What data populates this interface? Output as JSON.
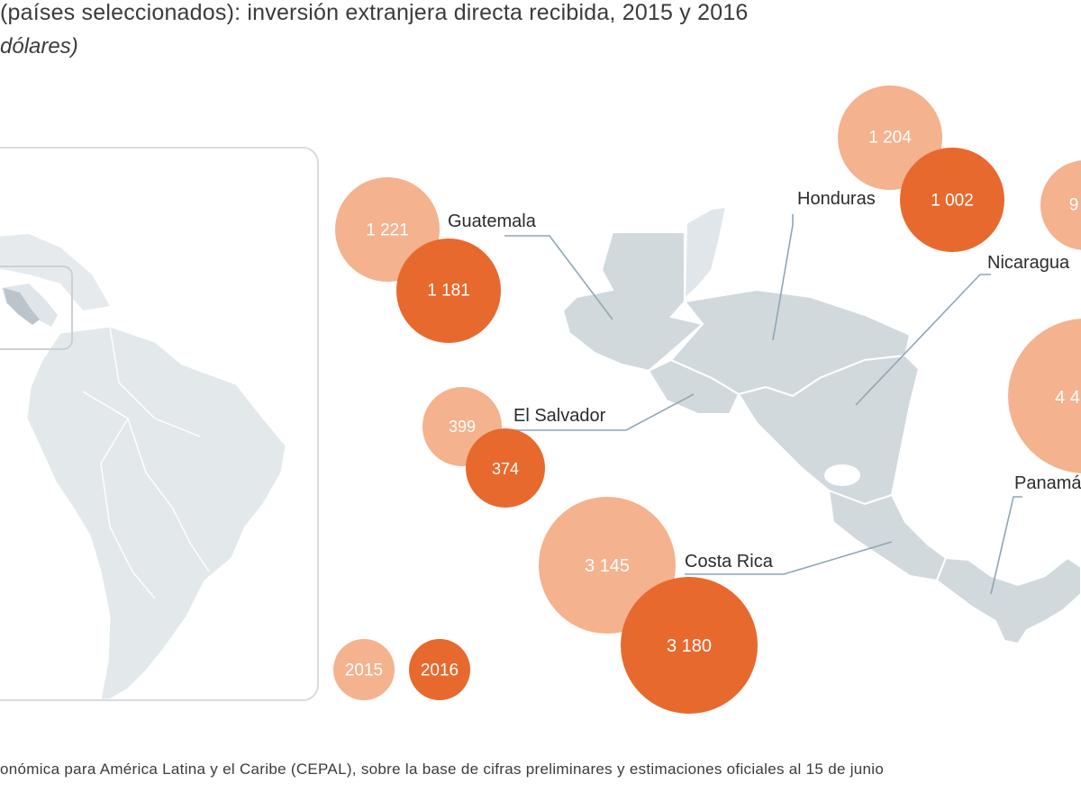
{
  "header": {
    "title": "(países seleccionados): inversión extranjera directa recibida, 2015 y 2016",
    "subtitle": "dólares)"
  },
  "footer": {
    "source": "onómica para América Latina y el Caribe (CEPAL), sobre la base de cifras preliminares y estimaciones oficiales al 15 de junio"
  },
  "colors": {
    "y2015": "#f4b28e",
    "y2016": "#e8692d",
    "land": "#d2d9dd",
    "land_inset": "#e3e8eb",
    "border_line": "#ffffff",
    "leader_line": "#8fa6b3"
  },
  "legend": {
    "y2015": "2015",
    "y2016": "2016"
  },
  "chart_data": {
    "type": "bubble-map",
    "unit": "millones de dólares",
    "series": [
      {
        "name": "2015",
        "color": "#f4b28e"
      },
      {
        "name": "2016",
        "color": "#e8692d"
      }
    ],
    "countries": [
      {
        "name": "Guatemala",
        "v2015": "1 221",
        "v2016": "1 181"
      },
      {
        "name": "El Salvador",
        "v2015": "399",
        "v2016": "374"
      },
      {
        "name": "Costa Rica",
        "v2015": "3 145",
        "v2016": "3 180"
      },
      {
        "name": "Honduras",
        "v2015": "1 204",
        "v2016": "1 002"
      },
      {
        "name": "Nicaragua",
        "v2015": "9",
        "v2016": ""
      },
      {
        "name": "Panamá",
        "v2015": "4 4",
        "v2016": ""
      }
    ]
  }
}
